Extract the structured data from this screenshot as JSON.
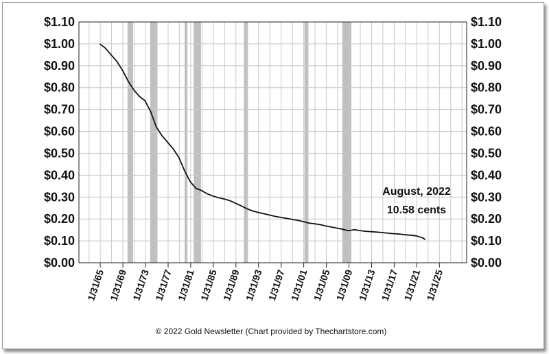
{
  "chart_data": {
    "type": "line",
    "title": "",
    "xlabel": "",
    "ylabel": "",
    "y_ticks": [
      "$0.00",
      "$0.10",
      "$0.20",
      "$0.30",
      "$0.40",
      "$0.50",
      "$0.60",
      "$0.70",
      "$0.80",
      "$0.90",
      "$1.00",
      "$1.10"
    ],
    "x_ticks": [
      "1/31/65",
      "1/31/69",
      "1/31/73",
      "1/31/77",
      "1/31/81",
      "1/31/85",
      "1/31/89",
      "1/31/93",
      "1/31/97",
      "1/31/01",
      "1/31/05",
      "1/31/09",
      "1/31/13",
      "1/31/17",
      "1/31/21",
      "1/31/25"
    ],
    "xlim": [
      1961.3,
      1930.0
    ],
    "x_range": [
      1961.3,
      2029.9
    ],
    "ylim": [
      0,
      1.1
    ],
    "grid": true,
    "y_axis_both_sides": true,
    "recession_bands": [
      [
        1969.9,
        1970.9
      ],
      [
        1973.9,
        1975.2
      ],
      [
        1980.0,
        1980.5
      ],
      [
        1981.6,
        1982.9
      ],
      [
        1990.5,
        1991.2
      ],
      [
        2001.2,
        2001.9
      ],
      [
        2007.9,
        2009.5
      ]
    ],
    "series": [
      {
        "x": [
          1965.0,
          1966.0,
          1967.0,
          1968.0,
          1969.0,
          1970.0,
          1971.0,
          1972.0,
          1973.0,
          1974.0,
          1975.0,
          1976.0,
          1977.0,
          1978.0,
          1979.0,
          1980.0,
          1981.0,
          1982.0,
          1983.0,
          1984.0,
          1985.0,
          1986.0,
          1987.0,
          1988.0,
          1989.0,
          1990.0,
          1991.0,
          1992.0,
          1993.0,
          1994.0,
          1995.0,
          1996.0,
          1997.0,
          1998.0,
          1999.0,
          2000.0,
          2001.0,
          2002.0,
          2003.0,
          2004.0,
          2005.0,
          2006.0,
          2007.0,
          2008.0,
          2009.0,
          2010.0,
          2011.0,
          2012.0,
          2013.0,
          2014.0,
          2015.0,
          2016.0,
          2017.0,
          2018.0,
          2019.0,
          2020.0,
          2021.0,
          2022.0,
          2022.6
        ],
        "values": [
          1.0,
          0.98,
          0.95,
          0.92,
          0.88,
          0.83,
          0.79,
          0.76,
          0.74,
          0.69,
          0.62,
          0.58,
          0.55,
          0.52,
          0.48,
          0.42,
          0.37,
          0.34,
          0.33,
          0.315,
          0.305,
          0.297,
          0.291,
          0.284,
          0.272,
          0.26,
          0.247,
          0.237,
          0.23,
          0.224,
          0.218,
          0.212,
          0.207,
          0.203,
          0.198,
          0.194,
          0.188,
          0.181,
          0.178,
          0.174,
          0.168,
          0.163,
          0.158,
          0.153,
          0.146,
          0.151,
          0.147,
          0.144,
          0.142,
          0.14,
          0.138,
          0.135,
          0.133,
          0.131,
          0.128,
          0.126,
          0.123,
          0.115,
          0.1058
        ]
      }
    ],
    "annotation": {
      "lines": [
        "August, 2022",
        "10.58 cents"
      ]
    },
    "footer": "© 2022 Gold Newsletter (Chart provided by Thechartstore.com)",
    "colors": {
      "line": "#111111",
      "band": "#c0c0c0",
      "grid": "#c8c8c8",
      "axis": "#222222"
    }
  }
}
